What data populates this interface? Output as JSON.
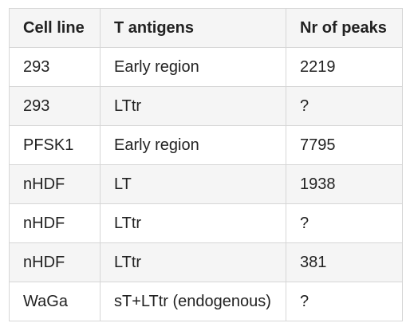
{
  "table": {
    "headers": [
      "Cell line",
      "T antigens",
      "Nr of peaks"
    ],
    "rows": [
      [
        "293",
        "Early region",
        "2219"
      ],
      [
        "293",
        "LTtr",
        "?"
      ],
      [
        "PFSK1",
        "Early region",
        "7795"
      ],
      [
        "nHDF",
        "LT",
        "1938"
      ],
      [
        "nHDF",
        "LTtr",
        "?"
      ],
      [
        "nHDF",
        "LTtr",
        "381"
      ],
      [
        "WaGa",
        "sT+LTtr (endogenous)",
        "?"
      ]
    ]
  }
}
